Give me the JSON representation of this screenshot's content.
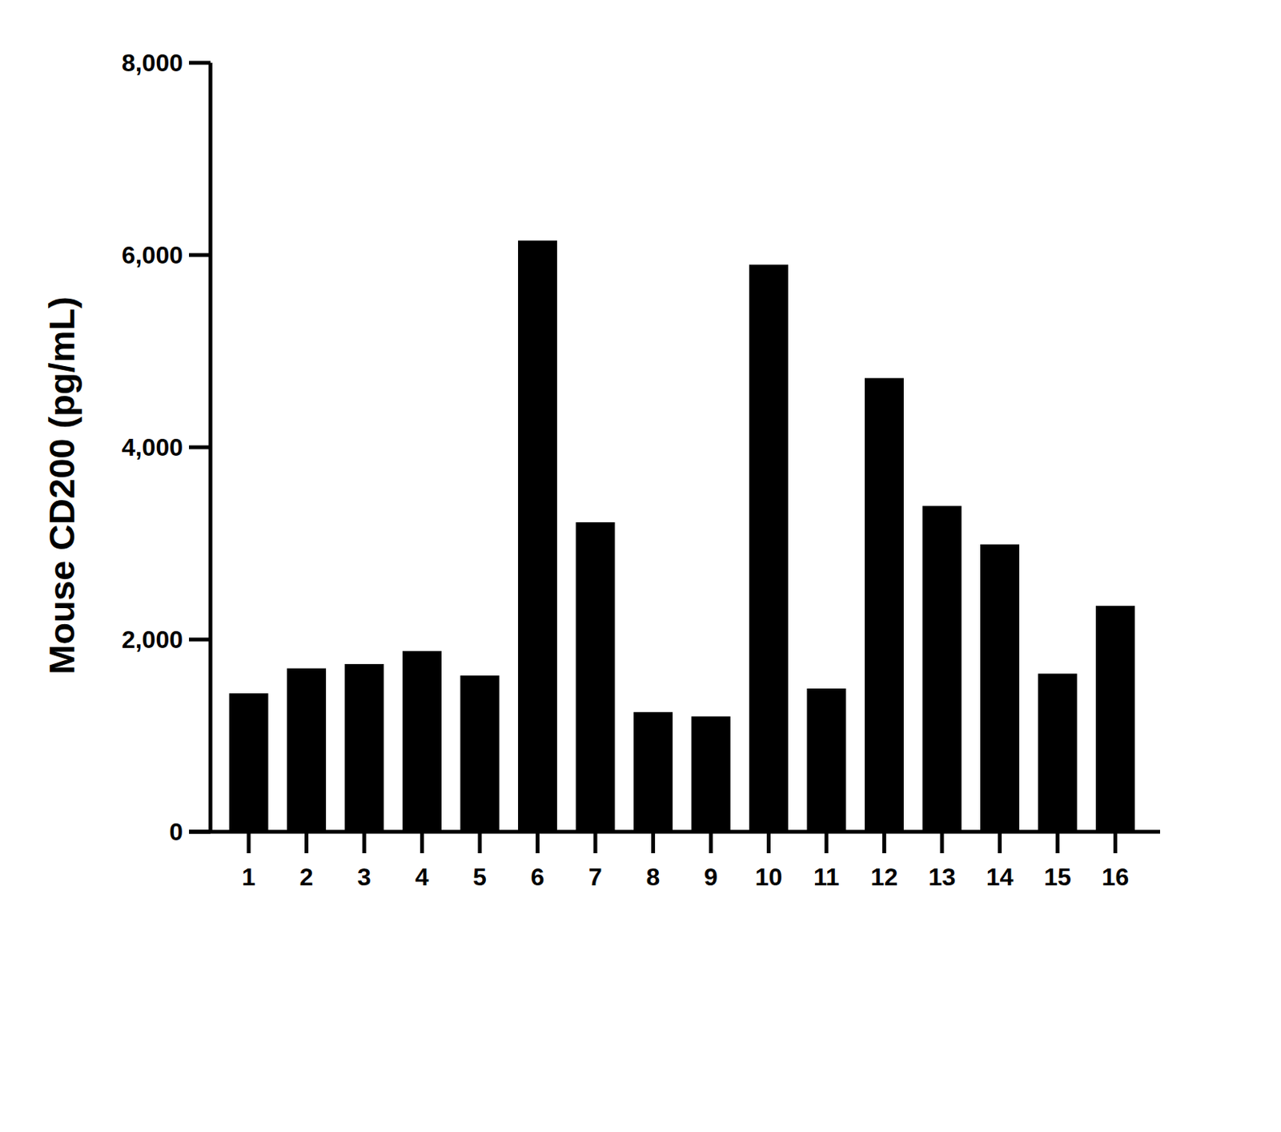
{
  "chart_data": {
    "type": "bar",
    "y_label": "Mouse CD200 (pg/mL)",
    "categories": [
      "1",
      "2",
      "3",
      "4",
      "5",
      "6",
      "7",
      "8",
      "9",
      "10",
      "11",
      "12",
      "13",
      "14",
      "15",
      "16"
    ],
    "values": [
      1440,
      1700,
      1745,
      1880,
      1625,
      6150,
      3220,
      1245,
      1200,
      5900,
      1490,
      4720,
      3390,
      2990,
      1645,
      2350
    ],
    "color": "#000000",
    "ylim": [
      0,
      8000
    ],
    "yticks": [
      0,
      {
        "value": 2000,
        "label": "2,000"
      },
      {
        "value": 4000,
        "label": "4,000"
      },
      {
        "value": 6000,
        "label": "6,000"
      },
      {
        "value": 8000,
        "label": "8,000"
      }
    ],
    "grid": false
  }
}
